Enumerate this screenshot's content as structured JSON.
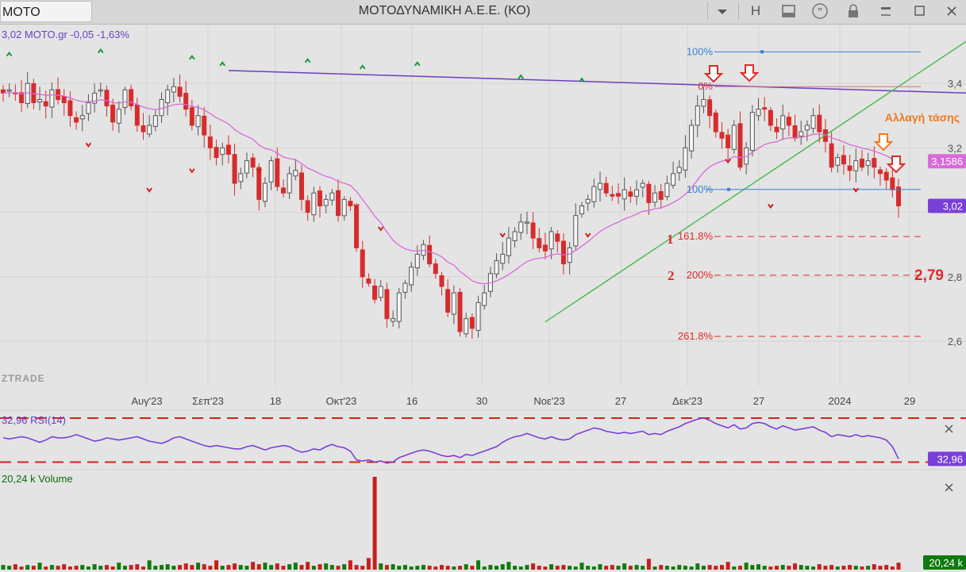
{
  "window": {
    "symbol": "MOTO",
    "title": "ΜΟΤΟΔΥΝΑΜΙΚΗ Α.Ε.Ε. (ΚΟ)",
    "h_label": "H"
  },
  "icons": [
    "chevron-down-icon",
    "panel-icon",
    "quote-icon",
    "lock-icon",
    "minimize-icon",
    "maximize-icon",
    "close-icon"
  ],
  "colors": {
    "up_candle": "#555555",
    "down_candle": "#d62c2c",
    "moving_average": "#d96ad9",
    "trendline": "#6a3fc4",
    "support_line": "#3cb43c",
    "fib_line": "#3a7fd5",
    "rsi_line": "#7a3fd8",
    "volume_up": "#0f7a0f",
    "volume_down": "#c81e1e",
    "annotation": "#e02a2a",
    "annotation_orange": "#f07820"
  },
  "chart_data": [
    {
      "type": "candlestick",
      "title": "3,02 MOTO.gr -0,05 -1,63%",
      "watermark": "ZTRADE",
      "x_tick_labels": [
        "Αυγ'23",
        "Σεπ'23",
        "18",
        "Οκτ'23",
        "16",
        "30",
        "Νοε'23",
        "27",
        "Δεκ'23",
        "27",
        "2024",
        "29"
      ],
      "y_tick_labels": [
        "3,4",
        "3,2",
        "2,8",
        "2,6"
      ],
      "ylim": [
        2.46,
        3.58
      ],
      "grid": true,
      "close_series": [
        3.37,
        3.38,
        3.37,
        3.34,
        3.4,
        3.34,
        3.35,
        3.33,
        3.38,
        3.35,
        3.34,
        3.3,
        3.28,
        3.3,
        3.34,
        3.37,
        3.38,
        3.33,
        3.28,
        3.32,
        3.38,
        3.33,
        3.27,
        3.25,
        3.27,
        3.3,
        3.35,
        3.38,
        3.39,
        3.36,
        3.32,
        3.27,
        3.3,
        3.24,
        3.2,
        3.17,
        3.2,
        3.18,
        3.09,
        3.12,
        3.16,
        3.14,
        3.04,
        3.09,
        3.16,
        3.08,
        3.06,
        3.12,
        3.13,
        3.04,
        3.0,
        3.06,
        3.02,
        3.04,
        3.06,
        2.99,
        3.04,
        3.02,
        2.89,
        2.8,
        2.78,
        2.73,
        2.77,
        2.67,
        2.67,
        2.75,
        2.78,
        2.83,
        2.87,
        2.9,
        2.84,
        2.81,
        2.77,
        2.69,
        2.75,
        2.63,
        2.67,
        2.64,
        2.72,
        2.75,
        2.81,
        2.85,
        2.87,
        2.92,
        2.94,
        2.97,
        2.97,
        2.92,
        2.89,
        2.88,
        2.94,
        2.91,
        2.84,
        2.89,
        2.99,
        3.02,
        3.04,
        3.08,
        3.09,
        3.06,
        3.05,
        3.05,
        3.07,
        3.05,
        3.07,
        3.09,
        3.03,
        3.06,
        3.04,
        3.09,
        3.12,
        3.14,
        3.2,
        3.27,
        3.33,
        3.35,
        3.3,
        3.25,
        3.23,
        3.2,
        3.27,
        3.14,
        3.2,
        3.31,
        3.32,
        3.32,
        3.27,
        3.25,
        3.3,
        3.27,
        3.23,
        3.25,
        3.27,
        3.3,
        3.25,
        3.22,
        3.14,
        3.17,
        3.15,
        3.13,
        3.16,
        3.14,
        3.16,
        3.14,
        3.12,
        3.1,
        3.07,
        3.02
      ],
      "moving_average_label": "EMA",
      "fibonacci_levels": [
        {
          "label": "100%",
          "value": 3.498
        },
        {
          "label": "0%",
          "value": 3.39
        },
        {
          "label": "100%",
          "value": 3.071
        },
        {
          "label": "161.8%",
          "value": 2.925
        },
        {
          "label": "200%",
          "value": 2.805
        },
        {
          "label": "261.8%",
          "value": 2.615
        }
      ],
      "annotations": [
        {
          "text": "Αλλαγή τάσης",
          "color": "#f07820"
        },
        {
          "text": "1",
          "color": "#e02a2a"
        },
        {
          "text": "2",
          "color": "#e02a2a"
        },
        {
          "text": "2,79",
          "color": "#e02a2a"
        }
      ],
      "price_badges": [
        {
          "label": "3,1586",
          "color": "#d96ad9"
        },
        {
          "label": "3,02",
          "color": "#7a3fd8"
        }
      ]
    },
    {
      "type": "line",
      "title": "32,96 RSI(14)",
      "series": [
        {
          "name": "RSI(14)",
          "values": [
            52,
            51,
            52,
            53,
            52,
            50,
            48,
            50,
            53,
            52,
            52,
            53,
            55,
            53,
            51,
            49,
            50,
            52,
            51,
            50,
            51,
            52,
            53,
            51,
            49,
            48,
            47,
            49,
            52,
            53,
            51,
            49,
            47,
            45,
            44,
            45,
            44,
            43,
            42,
            42,
            44,
            45,
            43,
            41,
            43,
            44,
            45,
            44,
            41,
            39,
            40,
            42,
            41,
            44,
            46,
            44,
            43,
            40,
            32,
            31,
            32,
            30,
            31,
            29,
            30,
            34,
            36,
            38,
            40,
            41,
            40,
            38,
            36,
            35,
            36,
            34,
            37,
            36,
            38,
            40,
            42,
            44,
            48,
            51,
            53,
            54,
            56,
            54,
            52,
            51,
            53,
            51,
            50,
            51,
            55,
            57,
            59,
            61,
            60,
            58,
            57,
            56,
            57,
            56,
            57,
            58,
            55,
            56,
            55,
            58,
            60,
            62,
            65,
            67,
            69,
            70,
            68,
            65,
            63,
            61,
            64,
            60,
            61,
            65,
            66,
            65,
            62,
            60,
            63,
            61,
            59,
            60,
            61,
            62,
            59,
            57,
            53,
            55,
            54,
            53,
            55,
            53,
            54,
            53,
            52,
            50,
            44,
            33
          ]
        }
      ],
      "ylim": [
        26,
        75
      ],
      "reference_levels": [
        70,
        30
      ],
      "value_badge": "32,96",
      "close_icon": "close-icon"
    },
    {
      "type": "bar",
      "title": "20,24 k Volume",
      "values": [
        6,
        5,
        7,
        4,
        6,
        5,
        9,
        4,
        6,
        5,
        7,
        4,
        5,
        6,
        4,
        7,
        5,
        6,
        4,
        9,
        5,
        6,
        7,
        4,
        12,
        5,
        6,
        7,
        5,
        6,
        8,
        6,
        9,
        7,
        5,
        12,
        5,
        6,
        8,
        6,
        5,
        10,
        7,
        9,
        6,
        8,
        5,
        7,
        9,
        6,
        10,
        5,
        7,
        8,
        6,
        5,
        7,
        12,
        6,
        5,
        15,
        120,
        8,
        6,
        7,
        5,
        6,
        4,
        5,
        6,
        5,
        4,
        6,
        5,
        4,
        5,
        7,
        5,
        12,
        4,
        6,
        5,
        7,
        10,
        5,
        4,
        6,
        8,
        5,
        4,
        7,
        5,
        6,
        5,
        4,
        9,
        5,
        4,
        7,
        5,
        6,
        5,
        8,
        5,
        6,
        5,
        14,
        4,
        6,
        5,
        4,
        6,
        5,
        4,
        8,
        5,
        6,
        5,
        6,
        10,
        4,
        5,
        9,
        6,
        7,
        5,
        4,
        5,
        6,
        5,
        8,
        6,
        5,
        4,
        7,
        5,
        6,
        4,
        5,
        6,
        5,
        4,
        5,
        7,
        5,
        6,
        4,
        9
      ],
      "value_badge": "20,24 k",
      "close_icon": "close-icon"
    }
  ]
}
